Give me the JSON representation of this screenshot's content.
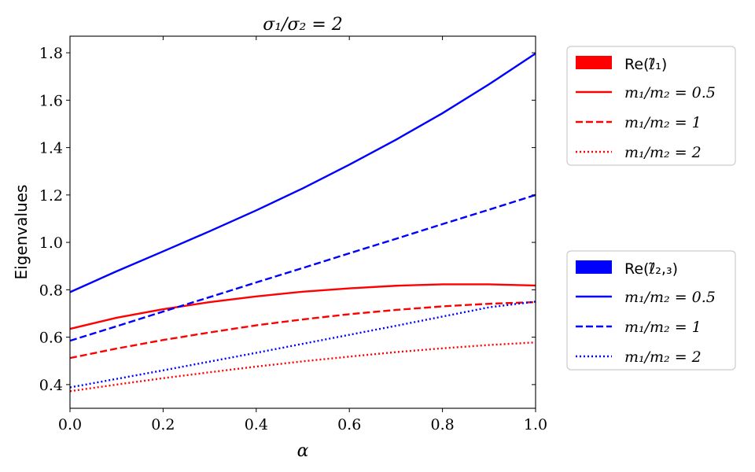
{
  "chart_data": {
    "type": "line",
    "title": "σ₁/σ₂ = 2",
    "xlabel": "α",
    "ylabel": "Eigenvalues",
    "xlim": [
      0.0,
      1.0
    ],
    "ylim": [
      0.3,
      1.87
    ],
    "x_ticks": [
      0.0,
      0.2,
      0.4,
      0.6,
      0.8,
      1.0
    ],
    "x_tick_labels": [
      "0.0",
      "0.2",
      "0.4",
      "0.6",
      "0.8",
      "1.0"
    ],
    "y_ticks": [
      0.4,
      0.6,
      0.8,
      1.0,
      1.2,
      1.4,
      1.6,
      1.8
    ],
    "y_tick_labels": [
      "0.4",
      "0.6",
      "0.8",
      "1.0",
      "1.2",
      "1.4",
      "1.6",
      "1.8"
    ],
    "grid": false,
    "x": [
      0.0,
      0.1,
      0.2,
      0.3,
      0.4,
      0.5,
      0.6,
      0.7,
      0.8,
      0.9,
      1.0
    ],
    "series": [
      {
        "group": "red",
        "style": "solid",
        "color": "#ff0000",
        "values": [
          0.635,
          0.682,
          0.718,
          0.748,
          0.772,
          0.792,
          0.806,
          0.817,
          0.823,
          0.823,
          0.818
        ]
      },
      {
        "group": "red",
        "style": "dashed",
        "color": "#ff0000",
        "values": [
          0.512,
          0.552,
          0.588,
          0.62,
          0.65,
          0.675,
          0.697,
          0.715,
          0.73,
          0.741,
          0.748
        ]
      },
      {
        "group": "red",
        "style": "dotted",
        "color": "#ff0000",
        "values": [
          0.372,
          0.4,
          0.427,
          0.452,
          0.476,
          0.498,
          0.518,
          0.537,
          0.553,
          0.567,
          0.578
        ]
      },
      {
        "group": "blue",
        "style": "solid",
        "color": "#0000ff",
        "values": [
          0.79,
          0.878,
          0.962,
          1.047,
          1.135,
          1.228,
          1.328,
          1.433,
          1.545,
          1.667,
          1.797
        ]
      },
      {
        "group": "blue",
        "style": "dashed",
        "color": "#0000ff",
        "values": [
          0.585,
          0.646,
          0.708,
          0.769,
          0.831,
          0.892,
          0.954,
          1.015,
          1.077,
          1.138,
          1.2
        ]
      },
      {
        "group": "blue",
        "style": "dotted",
        "color": "#0000ff",
        "values": [
          0.388,
          0.424,
          0.46,
          0.497,
          0.534,
          0.572,
          0.61,
          0.648,
          0.687,
          0.726,
          0.75
        ]
      }
    ],
    "legends": [
      {
        "position": "upper-right",
        "header": "Re(ℓ̃₁)",
        "color": "#ff0000",
        "entries": [
          {
            "style": "solid",
            "label": "m₁/m₂ = 0.5"
          },
          {
            "style": "dashed",
            "label": "m₁/m₂ = 1"
          },
          {
            "style": "dotted",
            "label": "m₁/m₂ = 2"
          }
        ]
      },
      {
        "position": "lower-right",
        "header": "Re(ℓ̃₂,₃)",
        "color": "#0000ff",
        "entries": [
          {
            "style": "solid",
            "label": "m₁/m₂ = 0.5"
          },
          {
            "style": "dashed",
            "label": "m₁/m₂ = 1"
          },
          {
            "style": "dotted",
            "label": "m₁/m₂ = 2"
          }
        ]
      }
    ]
  }
}
